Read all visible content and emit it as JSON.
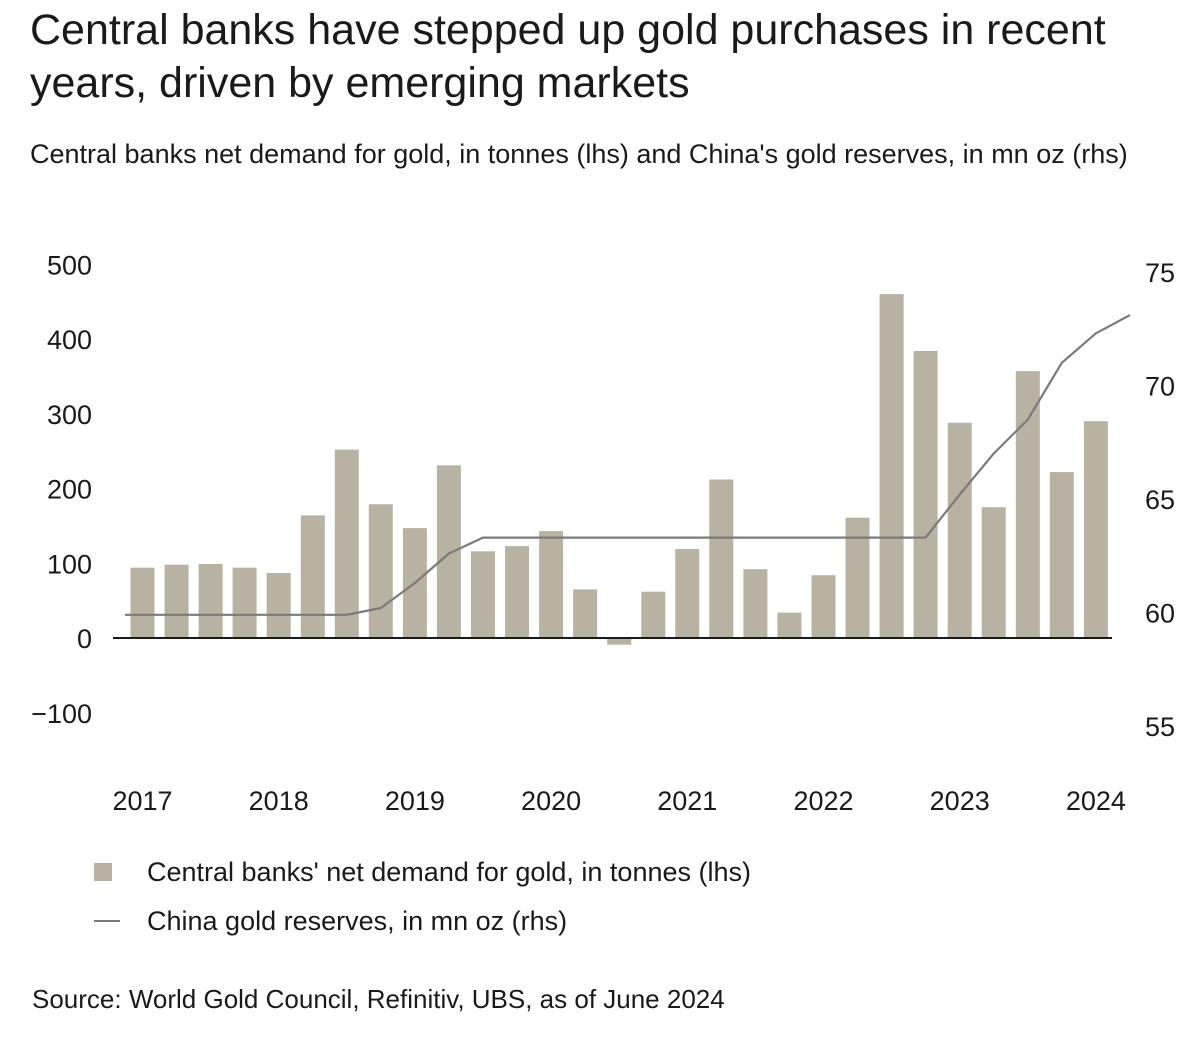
{
  "title": "Central banks have stepped up gold purchases in recent years, driven by emerging markets",
  "subtitle": "Central banks net demand for gold, in tonnes (lhs) and China's gold reserves, in mn oz (rhs)",
  "legend": {
    "bars_label": "Central banks' net demand for gold, in tonnes (lhs)",
    "line_label": "China gold reserves, in mn oz (rhs)"
  },
  "source": "Source: World Gold Council, Refinitiv, UBS, as of June 2024",
  "colors": {
    "bar": "#b8b2a2",
    "line": "#7a7a78",
    "axis": "#1a1a1a"
  },
  "chart_data": {
    "type": "bar",
    "quarters": [
      "Q1 2017",
      "Q2 2017",
      "Q3 2017",
      "Q4 2017",
      "Q1 2018",
      "Q2 2018",
      "Q3 2018",
      "Q4 2018",
      "Q1 2019",
      "Q2 2019",
      "Q3 2019",
      "Q4 2019",
      "Q1 2020",
      "Q2 2020",
      "Q3 2020",
      "Q4 2020",
      "Q1 2021",
      "Q2 2021",
      "Q3 2021",
      "Q4 2021",
      "Q1 2022",
      "Q2 2022",
      "Q3 2022",
      "Q4 2022",
      "Q1 2023",
      "Q2 2023",
      "Q3 2023",
      "Q4 2023",
      "Q1 2024",
      "Q2 2024"
    ],
    "x_tick_labels": [
      "2017",
      "2018",
      "2019",
      "2020",
      "2021",
      "2022",
      "2023",
      "2024"
    ],
    "series": [
      {
        "name": "Central banks' net demand for gold, in tonnes (lhs)",
        "axis": "left",
        "type": "bar",
        "values": [
          94,
          98,
          99,
          94,
          87,
          164,
          252,
          179,
          147,
          231,
          116,
          123,
          143,
          65,
          -9,
          62,
          119,
          212,
          92,
          34,
          84,
          161,
          460,
          384,
          288,
          175,
          357,
          222,
          290,
          null
        ]
      },
      {
        "name": "China gold reserves, in mn oz (rhs)",
        "axis": "right",
        "type": "line",
        "values": [
          59.9,
          59.9,
          59.9,
          59.9,
          59.9,
          59.9,
          59.9,
          60.2,
          61.3,
          62.6,
          63.3,
          63.3,
          63.3,
          63.3,
          63.3,
          63.3,
          63.3,
          63.3,
          63.3,
          63.3,
          63.3,
          63.3,
          63.3,
          63.3,
          65.2,
          67.0,
          68.5,
          71.0,
          72.3,
          73.1
        ]
      }
    ],
    "left_axis": {
      "ylim": [
        -100,
        500
      ],
      "ticks": [
        500,
        400,
        300,
        200,
        100,
        0,
        -100
      ],
      "tick_labels": [
        "500",
        "400",
        "300",
        "200",
        "100",
        "0",
        "−100"
      ]
    },
    "right_axis": {
      "ylim": [
        55,
        75
      ],
      "ticks": [
        75,
        70,
        65,
        60,
        55
      ],
      "tick_labels": [
        "75",
        "70",
        "65",
        "60",
        "55"
      ]
    }
  }
}
